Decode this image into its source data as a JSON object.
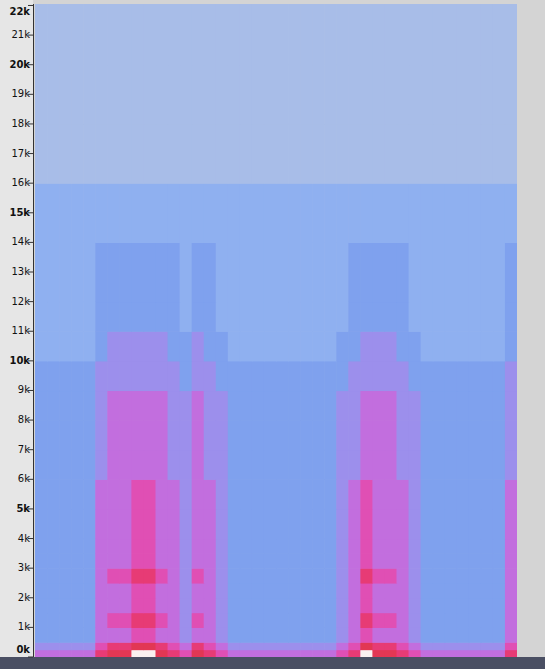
{
  "chart_data": {
    "type": "heatmap",
    "ylim": [
      0,
      22050
    ],
    "yticks": [
      {
        "value": 0,
        "label": "0k"
      },
      {
        "value": 1000,
        "label": "1k"
      },
      {
        "value": 2000,
        "label": "2k"
      },
      {
        "value": 3000,
        "label": "3k"
      },
      {
        "value": 4000,
        "label": "4k"
      },
      {
        "value": 5000,
        "label": "5k"
      },
      {
        "value": 6000,
        "label": "6k"
      },
      {
        "value": 7000,
        "label": "7k"
      },
      {
        "value": 8000,
        "label": "8k"
      },
      {
        "value": 9000,
        "label": "9k"
      },
      {
        "value": 10000,
        "label": "10k"
      },
      {
        "value": 11000,
        "label": "11k"
      },
      {
        "value": 12000,
        "label": "12k"
      },
      {
        "value": 13000,
        "label": "13k"
      },
      {
        "value": 14000,
        "label": "14k"
      },
      {
        "value": 15000,
        "label": "15k"
      },
      {
        "value": 16000,
        "label": "16k"
      },
      {
        "value": 17000,
        "label": "17k"
      },
      {
        "value": 18000,
        "label": "18k"
      },
      {
        "value": 19000,
        "label": "19k"
      },
      {
        "value": 20000,
        "label": "20k"
      },
      {
        "value": 21000,
        "label": "21k"
      },
      {
        "value": 22000,
        "label": "22k"
      }
    ],
    "tick_labels": "y",
    "grid": false,
    "y_bins": [
      0,
      250,
      500,
      1000,
      1500,
      2000,
      2500,
      3000,
      3500,
      4000,
      5000,
      6000,
      7000,
      8000,
      9000,
      10000,
      11000,
      12000,
      14000,
      16000,
      18000,
      20000,
      22050
    ],
    "zlim": [
      0,
      9
    ],
    "cells": [
      [
        5,
        5,
        5,
        5,
        5,
        7,
        8,
        8,
        9,
        9,
        8,
        7,
        6,
        8,
        7,
        6,
        5,
        5,
        5,
        5,
        5,
        5,
        5,
        5,
        5,
        6,
        7,
        9,
        8,
        8,
        7,
        6,
        5,
        5,
        5,
        5,
        5,
        5,
        5,
        7
      ],
      [
        4,
        4,
        4,
        4,
        4,
        6,
        7,
        7,
        8,
        8,
        7,
        6,
        5,
        7,
        6,
        5,
        4,
        4,
        4,
        4,
        4,
        4,
        4,
        4,
        4,
        5,
        6,
        8,
        7,
        7,
        6,
        5,
        4,
        4,
        4,
        4,
        4,
        4,
        4,
        6
      ],
      [
        3,
        3,
        3,
        3,
        3,
        5,
        5,
        5,
        6,
        6,
        5,
        5,
        4,
        5,
        5,
        4,
        3,
        3,
        3,
        3,
        3,
        3,
        3,
        3,
        3,
        4,
        5,
        6,
        5,
        5,
        5,
        4,
        3,
        3,
        3,
        3,
        3,
        3,
        3,
        5
      ],
      [
        3,
        3,
        3,
        3,
        3,
        5,
        6,
        6,
        7,
        7,
        6,
        5,
        4,
        6,
        5,
        4,
        3,
        3,
        3,
        3,
        3,
        3,
        3,
        3,
        3,
        4,
        5,
        7,
        6,
        6,
        5,
        4,
        3,
        3,
        3,
        3,
        3,
        3,
        3,
        5
      ],
      [
        3,
        3,
        3,
        3,
        3,
        5,
        5,
        5,
        6,
        6,
        5,
        5,
        4,
        5,
        5,
        4,
        3,
        3,
        3,
        3,
        3,
        3,
        3,
        3,
        3,
        4,
        5,
        6,
        5,
        5,
        5,
        4,
        3,
        3,
        3,
        3,
        3,
        3,
        3,
        5
      ],
      [
        3,
        3,
        3,
        3,
        3,
        5,
        5,
        5,
        6,
        6,
        5,
        5,
        4,
        5,
        5,
        4,
        3,
        3,
        3,
        3,
        3,
        3,
        3,
        3,
        3,
        4,
        5,
        6,
        5,
        5,
        5,
        4,
        3,
        3,
        3,
        3,
        3,
        3,
        3,
        5
      ],
      [
        3,
        3,
        3,
        3,
        3,
        5,
        6,
        6,
        7,
        7,
        6,
        5,
        4,
        6,
        5,
        4,
        3,
        3,
        3,
        3,
        3,
        3,
        3,
        3,
        3,
        4,
        5,
        7,
        6,
        6,
        5,
        4,
        3,
        3,
        3,
        3,
        3,
        3,
        3,
        5
      ],
      [
        3,
        3,
        3,
        3,
        3,
        5,
        5,
        5,
        6,
        6,
        5,
        5,
        4,
        5,
        5,
        4,
        3,
        3,
        3,
        3,
        3,
        3,
        3,
        3,
        3,
        4,
        5,
        6,
        5,
        5,
        5,
        4,
        3,
        3,
        3,
        3,
        3,
        3,
        3,
        5
      ],
      [
        3,
        3,
        3,
        3,
        3,
        5,
        5,
        5,
        6,
        6,
        5,
        5,
        4,
        5,
        5,
        4,
        3,
        3,
        3,
        3,
        3,
        3,
        3,
        3,
        3,
        4,
        5,
        6,
        5,
        5,
        5,
        4,
        3,
        3,
        3,
        3,
        3,
        3,
        3,
        5
      ],
      [
        3,
        3,
        3,
        3,
        3,
        5,
        5,
        5,
        6,
        6,
        5,
        5,
        4,
        5,
        5,
        4,
        3,
        3,
        3,
        3,
        3,
        3,
        3,
        3,
        3,
        4,
        5,
        6,
        5,
        5,
        5,
        4,
        3,
        3,
        3,
        3,
        3,
        3,
        3,
        5
      ],
      [
        3,
        3,
        3,
        3,
        3,
        5,
        5,
        5,
        6,
        6,
        5,
        5,
        4,
        5,
        5,
        4,
        3,
        3,
        3,
        3,
        3,
        3,
        3,
        3,
        3,
        4,
        5,
        6,
        5,
        5,
        5,
        4,
        3,
        3,
        3,
        3,
        3,
        3,
        3,
        5
      ],
      [
        3,
        3,
        3,
        3,
        3,
        4,
        5,
        5,
        5,
        5,
        5,
        4,
        4,
        5,
        4,
        4,
        3,
        3,
        3,
        3,
        3,
        3,
        3,
        3,
        3,
        4,
        4,
        5,
        5,
        5,
        4,
        4,
        3,
        3,
        3,
        3,
        3,
        3,
        3,
        4
      ],
      [
        3,
        3,
        3,
        3,
        3,
        4,
        5,
        5,
        5,
        5,
        5,
        4,
        4,
        5,
        4,
        4,
        3,
        3,
        3,
        3,
        3,
        3,
        3,
        3,
        3,
        4,
        4,
        5,
        5,
        5,
        4,
        4,
        3,
        3,
        3,
        3,
        3,
        3,
        3,
        4
      ],
      [
        3,
        3,
        3,
        3,
        3,
        4,
        5,
        5,
        5,
        5,
        5,
        4,
        4,
        5,
        4,
        4,
        3,
        3,
        3,
        3,
        3,
        3,
        3,
        3,
        3,
        4,
        4,
        5,
        5,
        5,
        4,
        4,
        3,
        3,
        3,
        3,
        3,
        3,
        3,
        4
      ],
      [
        3,
        3,
        3,
        3,
        3,
        4,
        4,
        4,
        4,
        4,
        4,
        4,
        3,
        4,
        4,
        3,
        3,
        3,
        3,
        3,
        3,
        3,
        3,
        3,
        3,
        3,
        4,
        4,
        4,
        4,
        4,
        3,
        3,
        3,
        3,
        3,
        3,
        3,
        3,
        4
      ],
      [
        2,
        2,
        2,
        2,
        2,
        3,
        4,
        4,
        4,
        4,
        4,
        3,
        3,
        4,
        3,
        3,
        2,
        2,
        2,
        2,
        2,
        2,
        2,
        2,
        2,
        3,
        3,
        4,
        4,
        4,
        3,
        3,
        2,
        2,
        2,
        2,
        2,
        2,
        2,
        3
      ],
      [
        2,
        2,
        2,
        2,
        2,
        3,
        3,
        3,
        3,
        3,
        3,
        3,
        2,
        3,
        3,
        2,
        2,
        2,
        2,
        2,
        2,
        2,
        2,
        2,
        2,
        2,
        3,
        3,
        3,
        3,
        3,
        2,
        2,
        2,
        2,
        2,
        2,
        2,
        2,
        3
      ],
      [
        2,
        2,
        2,
        2,
        2,
        3,
        3,
        3,
        3,
        3,
        3,
        3,
        2,
        3,
        3,
        2,
        2,
        2,
        2,
        2,
        2,
        2,
        2,
        2,
        2,
        2,
        3,
        3,
        3,
        3,
        3,
        2,
        2,
        2,
        2,
        2,
        2,
        2,
        2,
        3
      ],
      [
        2,
        2,
        2,
        2,
        2,
        2,
        2,
        2,
        2,
        2,
        2,
        2,
        2,
        2,
        2,
        2,
        2,
        2,
        2,
        2,
        2,
        2,
        2,
        2,
        2,
        2,
        2,
        2,
        2,
        2,
        2,
        2,
        2,
        2,
        2,
        2,
        2,
        2,
        2,
        2
      ],
      [
        1,
        1,
        1,
        1,
        1,
        1,
        1,
        1,
        1,
        1,
        1,
        1,
        1,
        1,
        1,
        1,
        1,
        1,
        1,
        1,
        1,
        1,
        1,
        1,
        1,
        1,
        1,
        1,
        1,
        1,
        1,
        1,
        1,
        1,
        1,
        1,
        1,
        1,
        1,
        1
      ],
      [
        1,
        1,
        1,
        1,
        1,
        1,
        1,
        1,
        1,
        1,
        1,
        1,
        1,
        1,
        1,
        1,
        1,
        1,
        1,
        1,
        1,
        1,
        1,
        1,
        1,
        1,
        1,
        1,
        1,
        1,
        1,
        1,
        1,
        1,
        1,
        1,
        1,
        1,
        1,
        1
      ],
      [
        1,
        1,
        1,
        1,
        1,
        1,
        1,
        1,
        1,
        1,
        1,
        1,
        1,
        1,
        1,
        1,
        1,
        1,
        1,
        1,
        1,
        1,
        1,
        1,
        1,
        1,
        1,
        1,
        1,
        1,
        1,
        1,
        1,
        1,
        1,
        1,
        1,
        1,
        1,
        1
      ]
    ]
  }
}
